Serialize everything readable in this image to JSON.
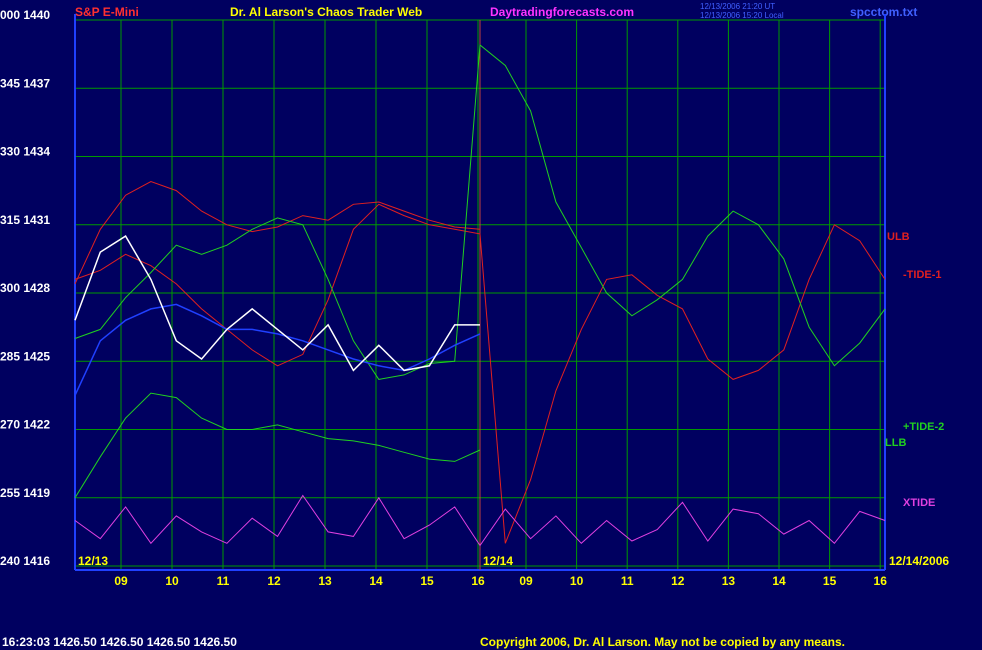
{
  "chart_data": {
    "type": "line",
    "title": "Dr. Al Larson's Chaos Trader Web",
    "symbol": "S&P E-Mini",
    "website": "Daytradingforecasts.com",
    "file": "spcctom.txt",
    "timestamp_ut": "12/13/2006 21:20 UT",
    "timestamp_local": "12/13/2006 15:20 Local",
    "day1_label": "12/13",
    "day2_label": "12/14",
    "end_date_label": "12/14/2006",
    "status": "16:23:03  1426.50  1426.50  1426.50  1426.50",
    "copyright": "Copyright 2006, Dr. Al Larson. May not be copied by any means.",
    "x_labels": [
      "09",
      "10",
      "11",
      "12",
      "13",
      "14",
      "15",
      "16",
      "09",
      "10",
      "11",
      "12",
      "13",
      "14",
      "15",
      "16"
    ],
    "ylim": [
      1416,
      1440
    ],
    "yticks": [
      {
        "value": 1416,
        "label": "240  1416"
      },
      {
        "value": 1419,
        "label": "255  1419"
      },
      {
        "value": 1422,
        "label": "270  1422"
      },
      {
        "value": 1425,
        "label": "285  1425"
      },
      {
        "value": 1428,
        "label": "300  1428"
      },
      {
        "value": 1431,
        "label": "315  1431"
      },
      {
        "value": 1434,
        "label": "330  1434"
      },
      {
        "value": 1437,
        "label": "345  1437"
      },
      {
        "value": 1440,
        "label": "000  1440"
      }
    ],
    "grid": true,
    "series": [
      {
        "name": "ULB",
        "color": "#e02020",
        "values": [
          1428.4,
          1430.8,
          1432.3,
          1432.9,
          1432.5,
          1431.6,
          1431.0,
          1430.7,
          1430.9,
          1431.4,
          1431.2,
          1431.9,
          1432.0,
          1431.6,
          1431.2,
          1430.9,
          1430.8,
          null,
          null,
          null,
          null,
          null,
          null,
          null,
          null,
          null,
          null,
          null,
          null,
          null,
          null,
          null,
          null
        ]
      },
      {
        "name": "-TIDE-1",
        "color": "#e02020",
        "values": [
          1428.6,
          1429.0,
          1429.7,
          1429.2,
          1428.4,
          1427.3,
          1426.4,
          1425.5,
          1424.8,
          1425.3,
          1427.7,
          1430.8,
          1431.9,
          1431.4,
          1431.0,
          1430.8,
          1430.6,
          1417.0,
          1419.8,
          1423.7,
          1426.4,
          1428.6,
          1428.8,
          1427.9,
          1427.3,
          1425.1,
          1424.2,
          1424.6,
          1425.5,
          1428.6,
          1431.0,
          1430.3,
          1428.6
        ]
      },
      {
        "name": "+TIDE-2",
        "color": "#20d020",
        "values": [
          1426.0,
          1426.4,
          1427.8,
          1428.9,
          1430.1,
          1429.7,
          1430.1,
          1430.8,
          1431.3,
          1431.0,
          1428.6,
          1425.9,
          1424.2,
          1424.4,
          1424.9,
          1425.0,
          1438.9,
          1438.0,
          1436.0,
          1432.0,
          1430.0,
          1428.0,
          1427.0,
          1427.7,
          1428.6,
          1430.5,
          1431.6,
          1431.0,
          1429.5,
          1426.5,
          1424.8,
          1425.8,
          1427.3
        ]
      },
      {
        "name": "LLB",
        "color": "#20d020",
        "values": [
          1419.0,
          1420.8,
          1422.5,
          1423.6,
          1423.4,
          1422.5,
          1422.0,
          1422.0,
          1422.2,
          1421.9,
          1421.6,
          1421.5,
          1421.3,
          1421.0,
          1420.7,
          1420.6,
          1421.1,
          null,
          null,
          null,
          null,
          null,
          null,
          null,
          null,
          null,
          null,
          null,
          null,
          null,
          null,
          null,
          null
        ]
      },
      {
        "name": "XTIDE",
        "color": "#e040e0",
        "values": [
          1418.0,
          1417.2,
          1418.6,
          1417.0,
          1418.2,
          1417.5,
          1417.0,
          1418.1,
          1417.3,
          1419.1,
          1417.5,
          1417.3,
          1419.0,
          1417.2,
          1417.8,
          1418.6,
          1416.9,
          1418.5,
          1417.2,
          1418.2,
          1417.0,
          1418.0,
          1417.1,
          1417.6,
          1418.8,
          1417.1,
          1418.5,
          1418.3,
          1417.4,
          1418.0,
          1417.0,
          1418.4,
          1418.0
        ]
      },
      {
        "color": "#2040ff",
        "values": [
          1423.5,
          1425.9,
          1426.8,
          1427.3,
          1427.5,
          1427.0,
          1426.4,
          1426.4,
          1426.2,
          1425.9,
          1425.5,
          1425.1,
          1424.8,
          1424.6,
          1425.1,
          1425.7,
          1426.2,
          null,
          null,
          null,
          null,
          null,
          null,
          null,
          null,
          null,
          null,
          null,
          null,
          null,
          null,
          null,
          null
        ]
      },
      {
        "color": "#ffffff",
        "values": [
          1426.8,
          1429.8,
          1430.5,
          1428.6,
          1425.9,
          1425.1,
          1426.4,
          1427.3,
          1426.4,
          1425.5,
          1426.6,
          1424.6,
          1425.7,
          1424.6,
          1424.8,
          1426.6,
          1426.6,
          null,
          null,
          null,
          null,
          null,
          null,
          null,
          null,
          null,
          null,
          null,
          null,
          null,
          null,
          null,
          null
        ]
      }
    ]
  }
}
